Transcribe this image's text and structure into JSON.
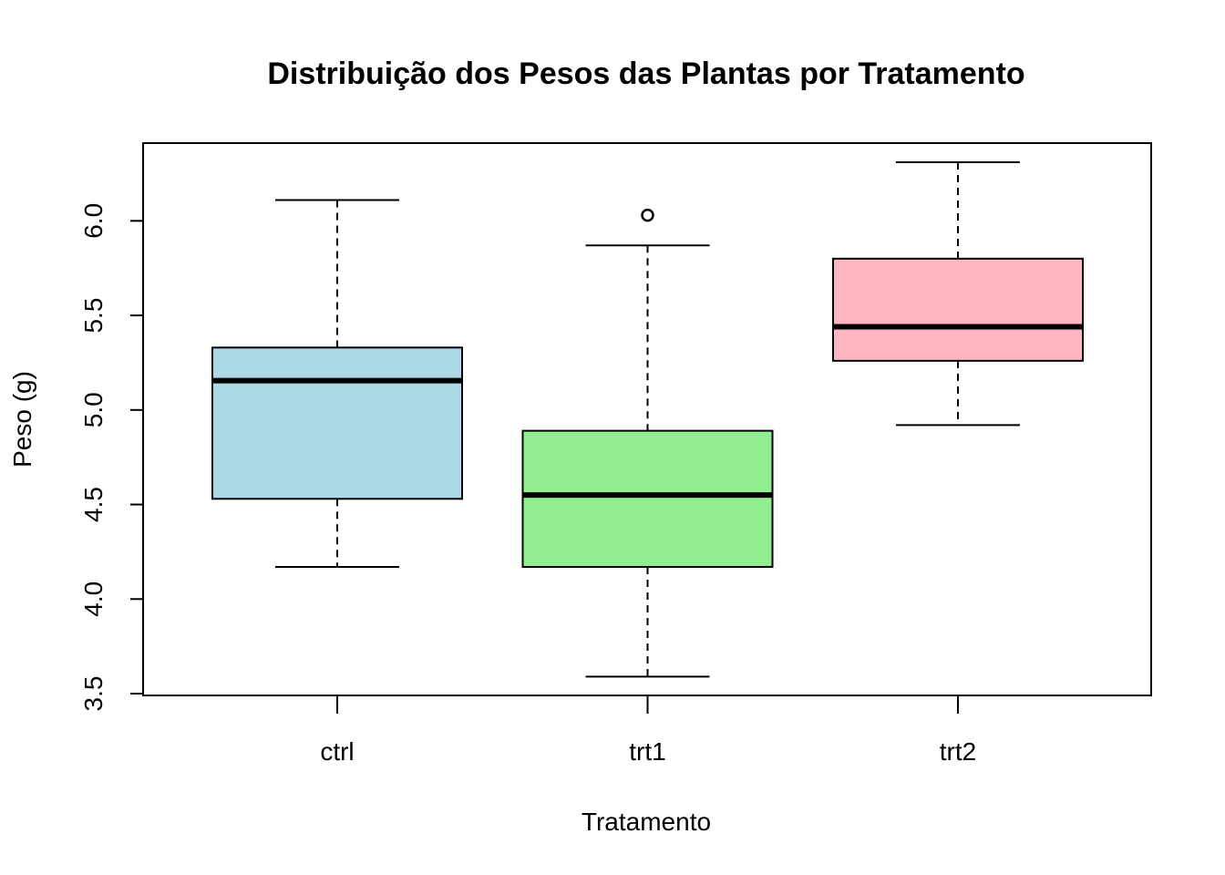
{
  "chart_data": {
    "type": "boxplot",
    "title": "Distribuição dos Pesos das Plantas por Tratamento",
    "xlabel": "Tratamento",
    "ylabel": "Peso (g)",
    "ylim": [
      3.5,
      6.2
    ],
    "yticks": [
      3.5,
      4.0,
      4.5,
      5.0,
      5.5,
      6.0
    ],
    "ytick_labels": [
      "3.5",
      "4.0",
      "4.5",
      "5.0",
      "5.5",
      "6.0"
    ],
    "grid": false,
    "legend": "none",
    "categories": [
      "ctrl",
      "trt1",
      "trt2"
    ],
    "boxes": [
      {
        "category": "ctrl",
        "whisker_low": 4.17,
        "q1": 4.53,
        "median": 5.155,
        "q3": 5.33,
        "whisker_high": 6.11,
        "outliers": [],
        "color": "#ADD8E6"
      },
      {
        "category": "trt1",
        "whisker_low": 3.59,
        "q1": 4.17,
        "median": 4.55,
        "q3": 4.89,
        "whisker_high": 5.87,
        "outliers": [
          6.03
        ],
        "color": "#90EE90"
      },
      {
        "category": "trt2",
        "whisker_low": 4.92,
        "q1": 5.26,
        "median": 5.44,
        "q3": 5.8,
        "whisker_high": 6.31,
        "outliers": [],
        "color": "#FFB6C1"
      }
    ]
  }
}
